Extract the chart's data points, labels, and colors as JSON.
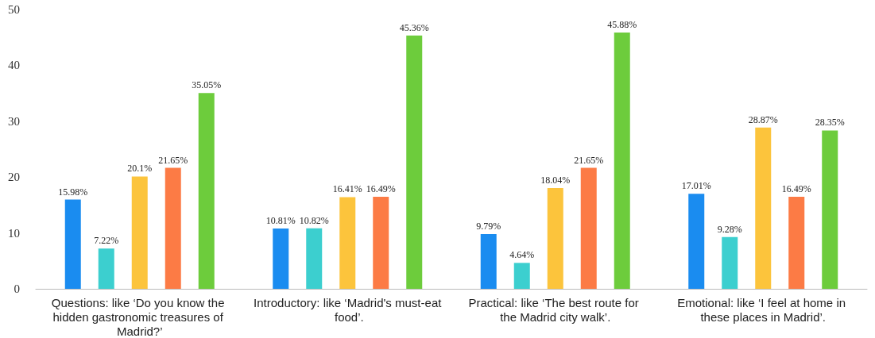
{
  "chart_data": {
    "type": "bar",
    "categories": [
      "Questions: like ‘Do you know the hidden gastronomic treasures of Madrid?’",
      "Introductory: like ‘Madrid's must-eat food’.",
      "Practical: like ‘The best route for the Madrid city walk’.",
      "Emotional: like ‘I feel at home in these places in Madrid’."
    ],
    "series": [
      {
        "color": "#1a8cf0",
        "values": [
          15.98,
          10.81,
          9.79,
          17.01
        ],
        "value_labels": [
          "15.98%",
          "10.81%",
          "9.79%",
          "17.01%"
        ]
      },
      {
        "color": "#3ccfcf",
        "values": [
          7.22,
          10.82,
          4.64,
          9.28
        ],
        "value_labels": [
          "7.22%",
          "10.82%",
          "4.64%",
          "9.28%"
        ]
      },
      {
        "color": "#fcc43c",
        "values": [
          20.1,
          16.41,
          18.04,
          28.87
        ],
        "value_labels": [
          "20.1%",
          "16.41%",
          "18.04%",
          "28.87%"
        ]
      },
      {
        "color": "#fc7b45",
        "values": [
          21.65,
          16.49,
          21.65,
          16.49
        ],
        "value_labels": [
          "21.65%",
          "16.49%",
          "21.65%",
          "16.49%"
        ]
      },
      {
        "color": "#6dcc3c",
        "values": [
          35.05,
          45.36,
          45.88,
          28.35
        ],
        "value_labels": [
          "35.05%",
          "45.36%",
          "45.88%",
          "28.35%"
        ]
      }
    ],
    "ylim": [
      0,
      50
    ],
    "yticks": [
      0,
      10,
      20,
      30,
      40,
      50
    ],
    "grid": false
  }
}
